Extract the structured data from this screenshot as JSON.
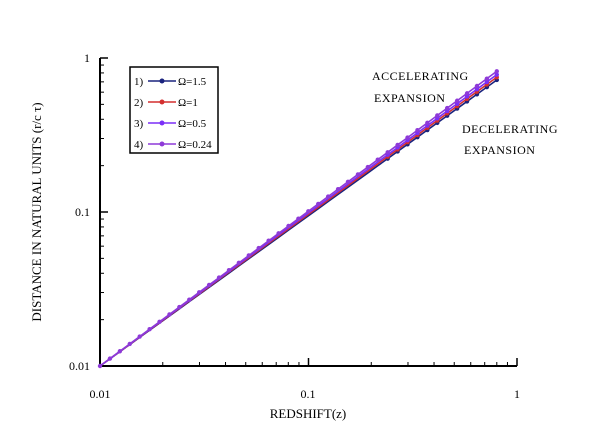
{
  "chart_data": {
    "type": "line",
    "xlabel": "REDSHIFT(z)",
    "ylabel": "DISTANCE IN NATURAL UNITS (r/c τ)",
    "xscale": "log",
    "yscale": "log",
    "xlim": [
      0.01,
      1
    ],
    "ylim": [
      0.01,
      1
    ],
    "xticks": [
      "0.01",
      "0.1",
      "1"
    ],
    "yticks": [
      "0.01",
      "0.1",
      "1"
    ],
    "legend_placement": "top-left",
    "grid": false,
    "series": [
      {
        "name": "1)",
        "omega_label": "Ω=1.5",
        "color": "#1a237e",
        "x": [
          0.01,
          0.8
        ],
        "y": [
          0.01,
          0.72
        ]
      },
      {
        "name": "2)",
        "omega_label": "Ω=1",
        "color": "#d32f2f",
        "x": [
          0.01,
          0.8
        ],
        "y": [
          0.01,
          0.75
        ]
      },
      {
        "name": "3)",
        "omega_label": "Ω=0.5",
        "color": "#7b2ff7",
        "x": [
          0.01,
          0.8
        ],
        "y": [
          0.01,
          0.78
        ]
      },
      {
        "name": "4)",
        "omega_label": "Ω=0.24",
        "color": "#8e3ad8",
        "x": [
          0.01,
          0.8
        ],
        "y": [
          0.01,
          0.82
        ]
      }
    ],
    "annotations": [
      {
        "lines": [
          "ACCELERATING",
          "EXPANSION"
        ]
      },
      {
        "lines": [
          "DECELERATING",
          "EXPANSION"
        ]
      }
    ]
  }
}
